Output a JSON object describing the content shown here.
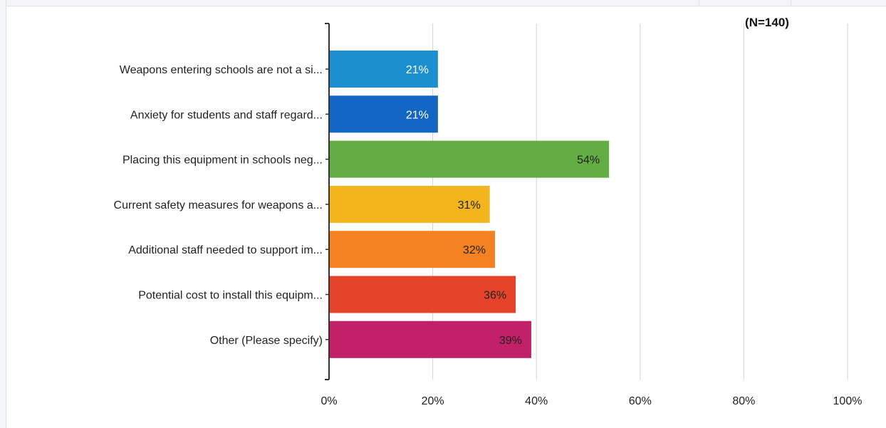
{
  "chart_data": {
    "type": "bar",
    "orientation": "horizontal",
    "annotation": "(N=140)",
    "categories": [
      "Weapons entering schools are not a si...",
      "Anxiety for students and staff regard...",
      "Placing this equipment in schools neg...",
      "Current safety measures for weapons a...",
      "Additional staff needed to support im...",
      "Potential cost to install this equipm...",
      "Other (Please specify)"
    ],
    "values": [
      21,
      21,
      54,
      31,
      32,
      36,
      39
    ],
    "value_labels": [
      "21%",
      "21%",
      "54%",
      "31%",
      "32%",
      "36%",
      "39%"
    ],
    "colors": [
      "#1c8fce",
      "#1466c4",
      "#63ad45",
      "#f2b51b",
      "#f58220",
      "#e5442a",
      "#c22068"
    ],
    "label_colors": [
      "#ffffff",
      "#ffffff",
      "#222222",
      "#222222",
      "#222222",
      "#222222",
      "#222222"
    ],
    "xlim": [
      0,
      100
    ],
    "xticks": [
      0,
      20,
      40,
      60,
      80,
      100
    ],
    "xtick_labels": [
      "0%",
      "20%",
      "40%",
      "60%",
      "80%",
      "100%"
    ],
    "xlabel": "",
    "ylabel": "",
    "grid": true,
    "legend": "none"
  }
}
